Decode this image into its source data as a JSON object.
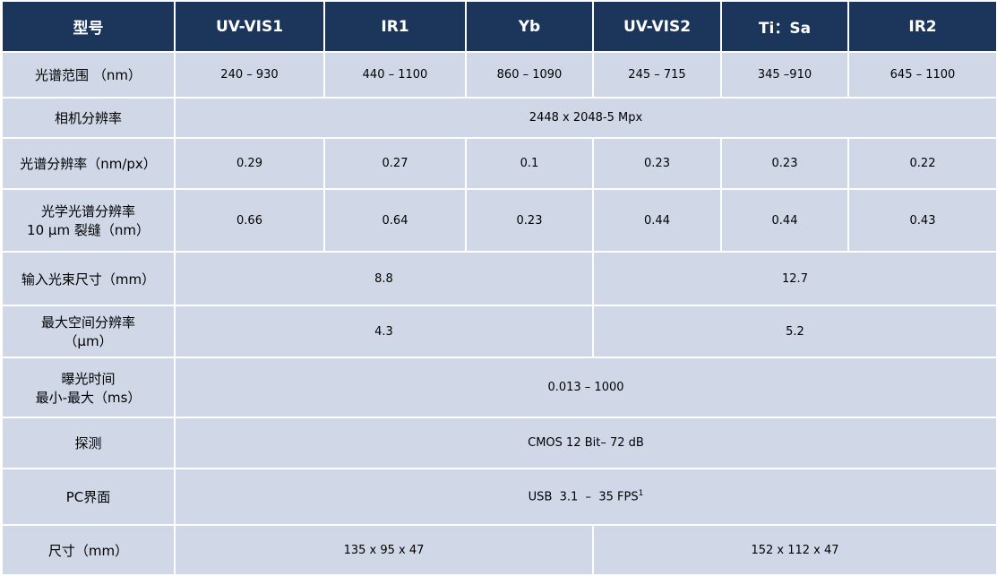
{
  "table": {
    "header": [
      "型号",
      "UV-VIS1",
      "IR1",
      "Yb",
      "UV-VIS2",
      "Ti：Sa",
      "IR2"
    ],
    "rows": [
      [
        "光谱范围 （nm）",
        "240 – 930",
        "440 – 1100",
        "860 – 1090",
        "245 – 715",
        "345 –910",
        "645 – 1100"
      ],
      [
        "相机分辨率",
        "2448 x 2048-5 Mpx"
      ],
      [
        "光谱分辨率（nm/px）",
        "0.29",
        "0.27",
        "0.1",
        "0.23",
        "0.23",
        "0.22"
      ],
      [
        [
          "光学光谱分辨率",
          "10 µm 裂缝（nm）"
        ],
        "0.66",
        "0.64",
        "0.23",
        "0.44",
        "0.44",
        "0.43"
      ],
      [
        "输入光束尺寸（mm）",
        "8.8",
        "12.7"
      ],
      [
        [
          "最大空间分辨率",
          "（µm）"
        ],
        "4.3",
        "5.2"
      ],
      [
        [
          "曝光时间",
          "最小-最大（ms）"
        ],
        "0.013 – 1000"
      ],
      [
        "探测",
        "CMOS 12 Bit– 72 dB"
      ],
      [
        "PC界面",
        {
          "text": "USB  3.1  –  35 FPS",
          "sup": "1"
        }
      ],
      [
        "尺寸（mm）",
        "135 x 95 x 47",
        "152 x 112 x 47"
      ]
    ]
  }
}
